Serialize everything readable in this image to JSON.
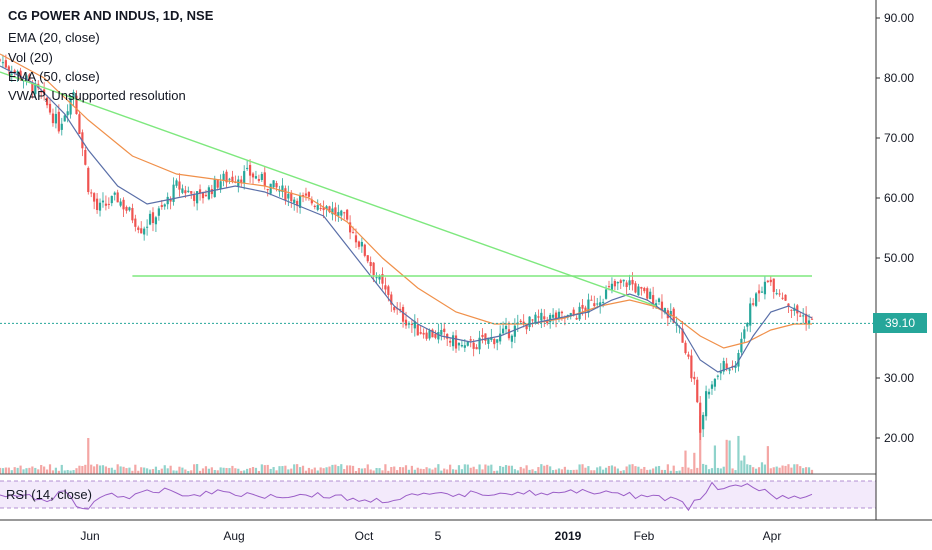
{
  "legend": {
    "title": "CG POWER AND INDUS, 1D, NSE",
    "ema20": "EMA (20, close)",
    "vol": "Vol (20)",
    "ema50": "EMA (50, close)",
    "vwap": "VWAP, Unsupported resolution"
  },
  "rsi_label": "RSI (14, close)",
  "last_price": "39.10",
  "colors": {
    "up": "#26a69a",
    "down": "#ef5350",
    "ema20": "#5a6fa8",
    "ema50": "#f0904a",
    "trendline": "#7ee87e",
    "rsi_band": "#ead8f7",
    "last_price_bg": "#26a69a",
    "last_price_line": "#26a69a"
  },
  "chart_data": {
    "type": "candlestick",
    "y_ticks": [
      "90.00",
      "80.00",
      "70.00",
      "60.00",
      "50.00",
      "40.00",
      "30.00",
      "20.00"
    ],
    "y_tick_values": [
      90,
      80,
      70,
      60,
      50,
      40,
      30,
      20
    ],
    "ylim": [
      14,
      92
    ],
    "x_ticks": [
      {
        "label": "Jun",
        "bold": false
      },
      {
        "label": "Aug",
        "bold": false
      },
      {
        "label": "Oct",
        "bold": false
      },
      {
        "label": "5",
        "bold": false
      },
      {
        "label": "2019",
        "bold": true
      },
      {
        "label": "Feb",
        "bold": false
      },
      {
        "label": "Apr",
        "bold": false
      }
    ],
    "close_path": [
      [
        0,
        83
      ],
      [
        8,
        80
      ],
      [
        14,
        77
      ],
      [
        20,
        72
      ],
      [
        25,
        78
      ],
      [
        30,
        62
      ],
      [
        33,
        58
      ],
      [
        40,
        60
      ],
      [
        48,
        55
      ],
      [
        55,
        58
      ],
      [
        60,
        62
      ],
      [
        68,
        60
      ],
      [
        75,
        63
      ],
      [
        85,
        64
      ],
      [
        92,
        62
      ],
      [
        100,
        60
      ],
      [
        110,
        59
      ],
      [
        118,
        56
      ],
      [
        125,
        50
      ],
      [
        130,
        45
      ],
      [
        135,
        41
      ],
      [
        142,
        38
      ],
      [
        150,
        37
      ],
      [
        158,
        35
      ],
      [
        164,
        36
      ],
      [
        170,
        37
      ],
      [
        178,
        39
      ],
      [
        186,
        40
      ],
      [
        194,
        40
      ],
      [
        200,
        42
      ],
      [
        208,
        45
      ],
      [
        214,
        46
      ],
      [
        218,
        44
      ],
      [
        224,
        43
      ],
      [
        228,
        40
      ],
      [
        232,
        37
      ],
      [
        234,
        33
      ],
      [
        236,
        29
      ],
      [
        238,
        22
      ],
      [
        240,
        28
      ],
      [
        244,
        31
      ],
      [
        250,
        33
      ],
      [
        254,
        40
      ],
      [
        258,
        45
      ],
      [
        262,
        46
      ],
      [
        266,
        44
      ],
      [
        270,
        41
      ],
      [
        274,
        40
      ],
      [
        276,
        39.1
      ]
    ],
    "ema20_path": [
      [
        0,
        82
      ],
      [
        12,
        79
      ],
      [
        22,
        74
      ],
      [
        30,
        68
      ],
      [
        40,
        62
      ],
      [
        50,
        59
      ],
      [
        60,
        60
      ],
      [
        70,
        61
      ],
      [
        80,
        62
      ],
      [
        90,
        61
      ],
      [
        100,
        59
      ],
      [
        110,
        57
      ],
      [
        118,
        52
      ],
      [
        126,
        47
      ],
      [
        134,
        42
      ],
      [
        142,
        39
      ],
      [
        150,
        37
      ],
      [
        160,
        36
      ],
      [
        170,
        37
      ],
      [
        180,
        39
      ],
      [
        190,
        40
      ],
      [
        200,
        41
      ],
      [
        208,
        43
      ],
      [
        214,
        44
      ],
      [
        220,
        43
      ],
      [
        226,
        41
      ],
      [
        232,
        38
      ],
      [
        238,
        33
      ],
      [
        244,
        31
      ],
      [
        250,
        32
      ],
      [
        256,
        37
      ],
      [
        262,
        41
      ],
      [
        268,
        42
      ],
      [
        276,
        40
      ]
    ],
    "ema50_path": [
      [
        0,
        84
      ],
      [
        15,
        80
      ],
      [
        30,
        73
      ],
      [
        45,
        67
      ],
      [
        60,
        64
      ],
      [
        75,
        63
      ],
      [
        90,
        62
      ],
      [
        105,
        60
      ],
      [
        118,
        56
      ],
      [
        130,
        50
      ],
      [
        142,
        45
      ],
      [
        155,
        41
      ],
      [
        168,
        39
      ],
      [
        180,
        39
      ],
      [
        192,
        40
      ],
      [
        204,
        42
      ],
      [
        214,
        43
      ],
      [
        222,
        42
      ],
      [
        230,
        40
      ],
      [
        238,
        37
      ],
      [
        246,
        35
      ],
      [
        254,
        36
      ],
      [
        262,
        38
      ],
      [
        270,
        39
      ],
      [
        276,
        39
      ]
    ],
    "trendlines": [
      {
        "from": [
          0,
          81
        ],
        "to": [
          223,
          42
        ]
      },
      {
        "from": [
          45,
          47
        ],
        "to": [
          276,
          47
        ]
      }
    ],
    "x_domain": [
      0,
      276
    ]
  }
}
